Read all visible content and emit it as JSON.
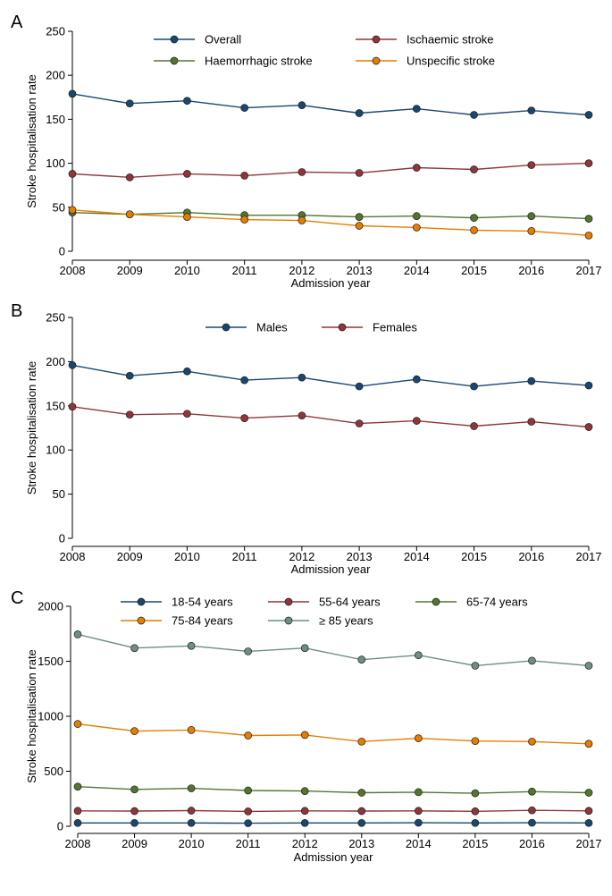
{
  "chart_data": [
    {
      "panel_label": "A",
      "type": "line",
      "xlabel": "Admission year",
      "ylabel": "Stroke hospitalisation rate",
      "x": [
        2008,
        2009,
        2010,
        2011,
        2012,
        2013,
        2014,
        2015,
        2016,
        2017
      ],
      "ylim": [
        0,
        250
      ],
      "yticks": [
        0,
        50,
        100,
        150,
        200,
        250
      ],
      "grid": false,
      "legend_position": "top",
      "series": [
        {
          "name": "Overall",
          "color": "#1a476f",
          "values": [
            179,
            168,
            171,
            163,
            166,
            157,
            162,
            155,
            160,
            155
          ]
        },
        {
          "name": "Ischaemic stroke",
          "color": "#90353b",
          "values": [
            88,
            84,
            88,
            86,
            90,
            89,
            95,
            93,
            98,
            100
          ]
        },
        {
          "name": "Haemorrhagic stroke",
          "color": "#55752f",
          "values": [
            44,
            42,
            44,
            41,
            41,
            39,
            40,
            38,
            40,
            37
          ]
        },
        {
          "name": "Unspecific stroke",
          "color": "#e37e00",
          "values": [
            47,
            42,
            39,
            36,
            35,
            29,
            27,
            24,
            23,
            18
          ]
        }
      ]
    },
    {
      "panel_label": "B",
      "type": "line",
      "xlabel": "Admission year",
      "ylabel": "Stroke hospitalisation rate",
      "x": [
        2008,
        2009,
        2010,
        2011,
        2012,
        2013,
        2014,
        2015,
        2016,
        2017
      ],
      "ylim": [
        0,
        250
      ],
      "yticks": [
        0,
        50,
        100,
        150,
        200,
        250
      ],
      "grid": false,
      "legend_position": "top",
      "series": [
        {
          "name": "Males",
          "color": "#1a476f",
          "values": [
            196,
            184,
            189,
            179,
            182,
            172,
            180,
            172,
            178,
            173
          ]
        },
        {
          "name": "Females",
          "color": "#90353b",
          "values": [
            149,
            140,
            141,
            136,
            139,
            130,
            133,
            127,
            132,
            126
          ]
        }
      ]
    },
    {
      "panel_label": "C",
      "type": "line",
      "xlabel": "Admission year",
      "ylabel": "Stroke hospitalisation rate",
      "x": [
        2008,
        2009,
        2010,
        2011,
        2012,
        2013,
        2014,
        2015,
        2016,
        2017
      ],
      "ylim": [
        0,
        2000
      ],
      "yticks": [
        0,
        500,
        1000,
        1500,
        2000
      ],
      "grid": false,
      "legend_position": "top",
      "series": [
        {
          "name": "18-54 years",
          "color": "#1a476f",
          "values": [
            30,
            30,
            30,
            28,
            30,
            30,
            32,
            30,
            32,
            30
          ]
        },
        {
          "name": "55-64 years",
          "color": "#90353b",
          "values": [
            140,
            138,
            142,
            135,
            140,
            138,
            140,
            136,
            145,
            140
          ]
        },
        {
          "name": "65-74 years",
          "color": "#55752f",
          "values": [
            360,
            335,
            345,
            325,
            320,
            305,
            310,
            300,
            315,
            305
          ]
        },
        {
          "name": "75-84 years",
          "color": "#e37e00",
          "values": [
            930,
            865,
            875,
            825,
            830,
            770,
            800,
            775,
            770,
            750
          ]
        },
        {
          "name": "≥ 85 years",
          "color": "#6e8e84",
          "values": [
            1745,
            1620,
            1640,
            1590,
            1620,
            1515,
            1555,
            1460,
            1505,
            1460
          ]
        }
      ]
    }
  ]
}
